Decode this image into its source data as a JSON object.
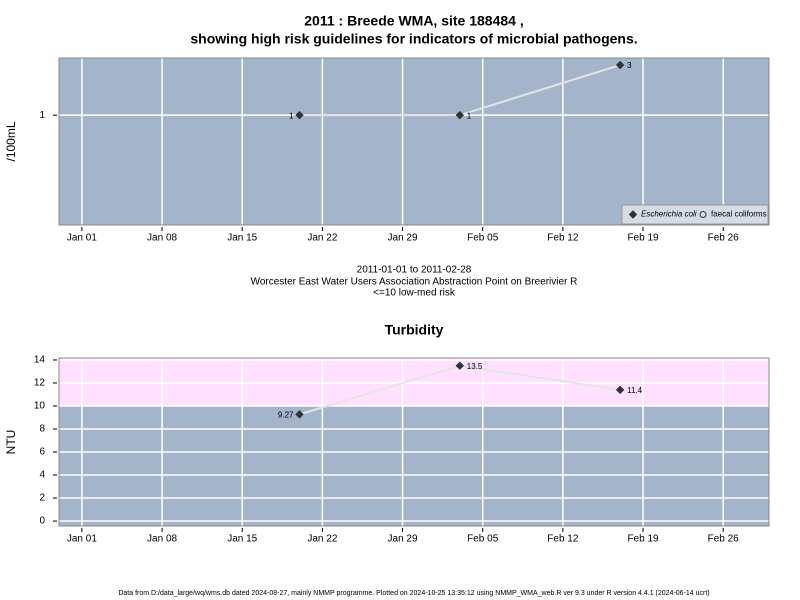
{
  "chart_data": [
    {
      "type": "line",
      "title": [
        "2011 : Breede WMA, site 188484 ,",
        "showing high risk guidelines for indicators of microbial pathogens."
      ],
      "subtitle": [
        "2011-01-01 to 2011-02-28",
        "Worcester East Water Users Association Abstraction Point on Breerivier R",
        "<=10 low-med risk"
      ],
      "y_label": "/100mL",
      "log_y": true,
      "x": [
        "2011-01-20",
        "2011-02-03",
        "2011-02-17"
      ],
      "series": [
        {
          "name": "Escherichia coli",
          "color": "#333333",
          "marker": "diamond",
          "values": [
            1,
            1,
            3
          ]
        },
        {
          "name": "faecal coliforms",
          "color": "#333333",
          "marker": "circle",
          "values": [
            null,
            null,
            null
          ]
        }
      ],
      "line_color": "#e4e4e4",
      "legend": "bottomright",
      "grid": true,
      "xlim": [
        "2010-12-30",
        "2011-03-02"
      ],
      "xticks": [
        {
          "value": "2011-01-01",
          "label": "Jan 01"
        },
        {
          "value": "2011-01-08",
          "label": "Jan 08"
        },
        {
          "value": "2011-01-15",
          "label": "Jan 15"
        },
        {
          "value": "2011-01-22",
          "label": "Jan 22"
        },
        {
          "value": "2011-01-29",
          "label": "Jan 29"
        },
        {
          "value": "2011-02-05",
          "label": "Feb 05"
        },
        {
          "value": "2011-02-12",
          "label": "Feb 12"
        },
        {
          "value": "2011-02-19",
          "label": "Feb 19"
        },
        {
          "value": "2011-02-26",
          "label": "Feb 26"
        }
      ],
      "ylim": [
        0.09,
        3.5
      ],
      "yticks": [
        1
      ],
      "background": "#a3b4cb"
    },
    {
      "type": "line",
      "title": [
        "Turbidity"
      ],
      "y_label": "NTU",
      "x": [
        "2011-01-20",
        "2011-02-03",
        "2011-02-17"
      ],
      "series": [
        {
          "name": "Turbidity",
          "color": "#333333",
          "marker": "diamond",
          "values": [
            9.27,
            13.5,
            11.4
          ]
        }
      ],
      "line_color": "#e4e4e4",
      "grid": true,
      "shade_above": 10,
      "shade_color": "#ffe0ff",
      "xlim": [
        "2010-12-30",
        "2011-03-02"
      ],
      "xticks": [
        {
          "value": "2011-01-01",
          "label": "Jan 01"
        },
        {
          "value": "2011-01-08",
          "label": "Jan 08"
        },
        {
          "value": "2011-01-15",
          "label": "Jan 15"
        },
        {
          "value": "2011-01-22",
          "label": "Jan 22"
        },
        {
          "value": "2011-01-29",
          "label": "Jan 29"
        },
        {
          "value": "2011-02-05",
          "label": "Feb 05"
        },
        {
          "value": "2011-02-12",
          "label": "Feb 12"
        },
        {
          "value": "2011-02-19",
          "label": "Feb 19"
        },
        {
          "value": "2011-02-26",
          "label": "Feb 26"
        }
      ],
      "ylim": [
        -0.43,
        14.17
      ],
      "yticks": [
        0,
        2,
        4,
        6,
        8,
        10,
        12,
        14
      ],
      "background": "#a3b4cb"
    }
  ],
  "footer": "Data from D:/data_large/wq/wms.db dated 2024-08-27, mainly NMMP programme. Plotted on 2024-10-25 13:35:12 using NMMP_WMA_web.R ver 9.3 under R version 4.4.1 (2024-06-14 ucrt)"
}
